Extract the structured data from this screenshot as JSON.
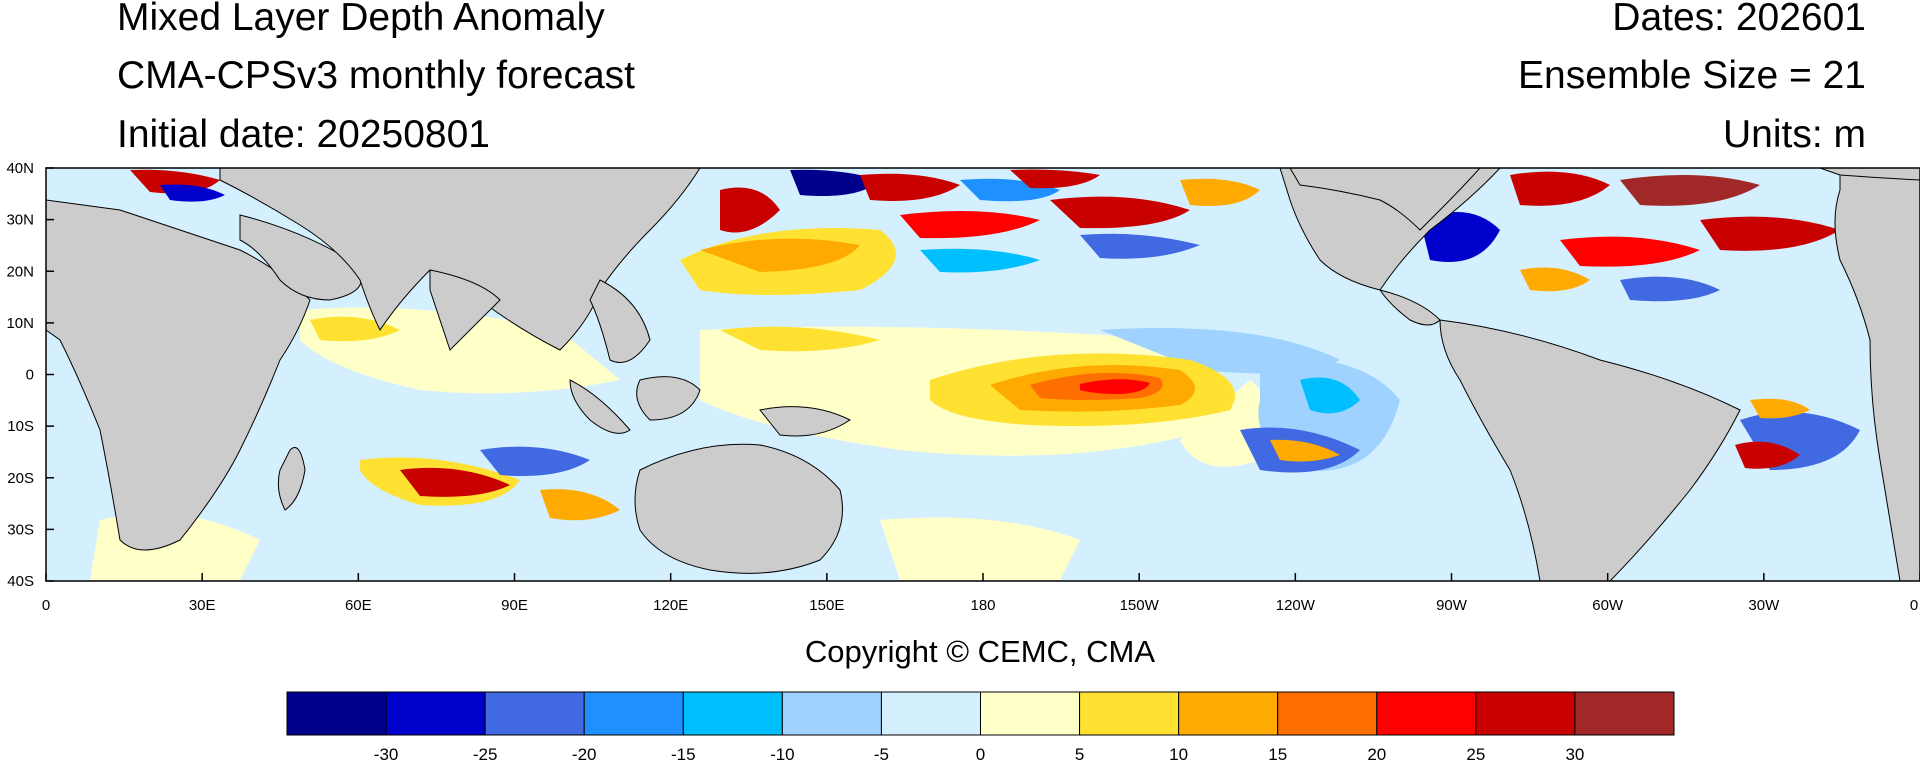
{
  "header": {
    "title": "Mixed Layer Depth Anomaly",
    "model": "CMA-CPSv3 monthly forecast",
    "initial_date": "Initial date: 20250801",
    "dates": "Dates: 202601",
    "ensemble": "Ensemble Size = 21",
    "units": "Units: m"
  },
  "map": {
    "lat_ticks": [
      "40N",
      "30N",
      "20N",
      "10N",
      "0",
      "10S",
      "20S",
      "30S",
      "40S"
    ],
    "lon_ticks": [
      "0",
      "30E",
      "60E",
      "90E",
      "120E",
      "150E",
      "180",
      "150W",
      "120W",
      "90W",
      "60W",
      "30W",
      "0"
    ],
    "land_color": "#cccccc",
    "ocean_base_color": "#d4f0ff"
  },
  "colorbar": {
    "labels": [
      "-30",
      "-25",
      "-20",
      "-15",
      "-10",
      "-5",
      "0",
      "5",
      "10",
      "15",
      "20",
      "25",
      "30"
    ],
    "colors": [
      "#00008c",
      "#0000cd",
      "#4169e1",
      "#1e90ff",
      "#00bfff",
      "#a0d2ff",
      "#d4f0ff",
      "#ffffc8",
      "#ffe132",
      "#ffaa00",
      "#ff6e00",
      "#ff0000",
      "#c80000",
      "#a02828"
    ]
  },
  "footer": {
    "copyright": "Copyright © CEMC, CMA"
  }
}
